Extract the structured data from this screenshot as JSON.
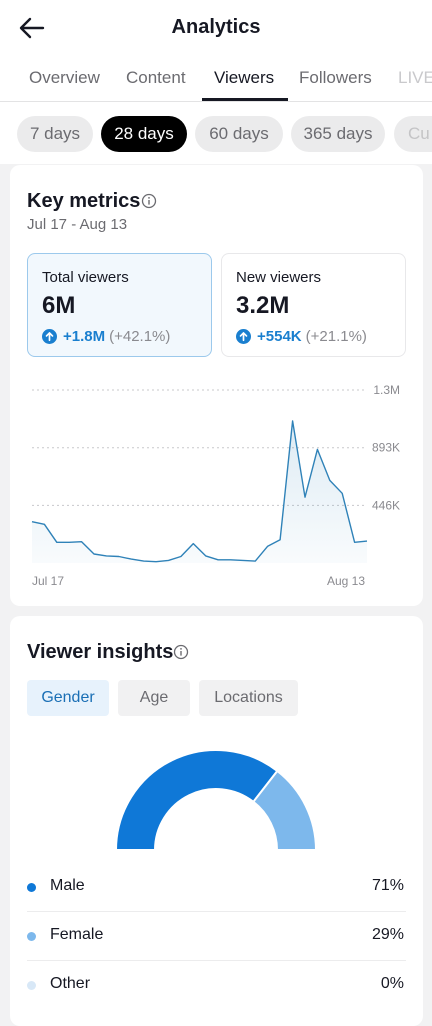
{
  "header": {
    "title": "Analytics"
  },
  "tabs": [
    {
      "label": "Overview"
    },
    {
      "label": "Content"
    },
    {
      "label": "Viewers"
    },
    {
      "label": "Followers"
    },
    {
      "label": "LIVE"
    }
  ],
  "range_chips": [
    {
      "label": "7 days"
    },
    {
      "label": "28 days"
    },
    {
      "label": "60 days"
    },
    {
      "label": "365 days"
    },
    {
      "label": "Cu"
    }
  ],
  "key_metrics": {
    "title": "Key metrics",
    "date_range": "Jul 17 - Aug 13",
    "cards": [
      {
        "label": "Total viewers",
        "value": "6M",
        "delta": "+1.8M",
        "delta_pct": "(+42.1%)"
      },
      {
        "label": "New viewers",
        "value": "3.2M",
        "delta": "+554K",
        "delta_pct": "(+21.1%)"
      }
    ]
  },
  "chart_data": {
    "type": "area",
    "x_start_label": "Jul 17",
    "x_end_label": "Aug 13",
    "y_tick_labels": [
      "1.3M",
      "893K",
      "446K"
    ],
    "ylim": [
      0,
      1340000
    ],
    "series": [
      {
        "values": [
          320000,
          300000,
          160000,
          160000,
          165000,
          70000,
          55000,
          50000,
          30000,
          15000,
          10000,
          20000,
          50000,
          150000,
          55000,
          25000,
          25000,
          20000,
          15000,
          130000,
          180000,
          1100000,
          510000,
          880000,
          640000,
          540000,
          160000,
          170000
        ]
      }
    ],
    "color": "#2f82b8",
    "grid": true
  },
  "viewer_insights": {
    "title": "Viewer insights",
    "segments": [
      {
        "label": "Gender"
      },
      {
        "label": "Age"
      },
      {
        "label": "Locations"
      }
    ],
    "legend": [
      {
        "label": "Male",
        "value": "71%",
        "color": "#0f78d7",
        "fraction": 0.71
      },
      {
        "label": "Female",
        "value": "29%",
        "color": "#7db8ec",
        "fraction": 0.29
      },
      {
        "label": "Other",
        "value": "0%",
        "color": "#d8e8f7",
        "fraction": 0
      }
    ]
  },
  "colors": {
    "accent": "#1a7fcf",
    "male": "#0f78d7",
    "female": "#7db8ec",
    "other": "#d8e8f7"
  }
}
